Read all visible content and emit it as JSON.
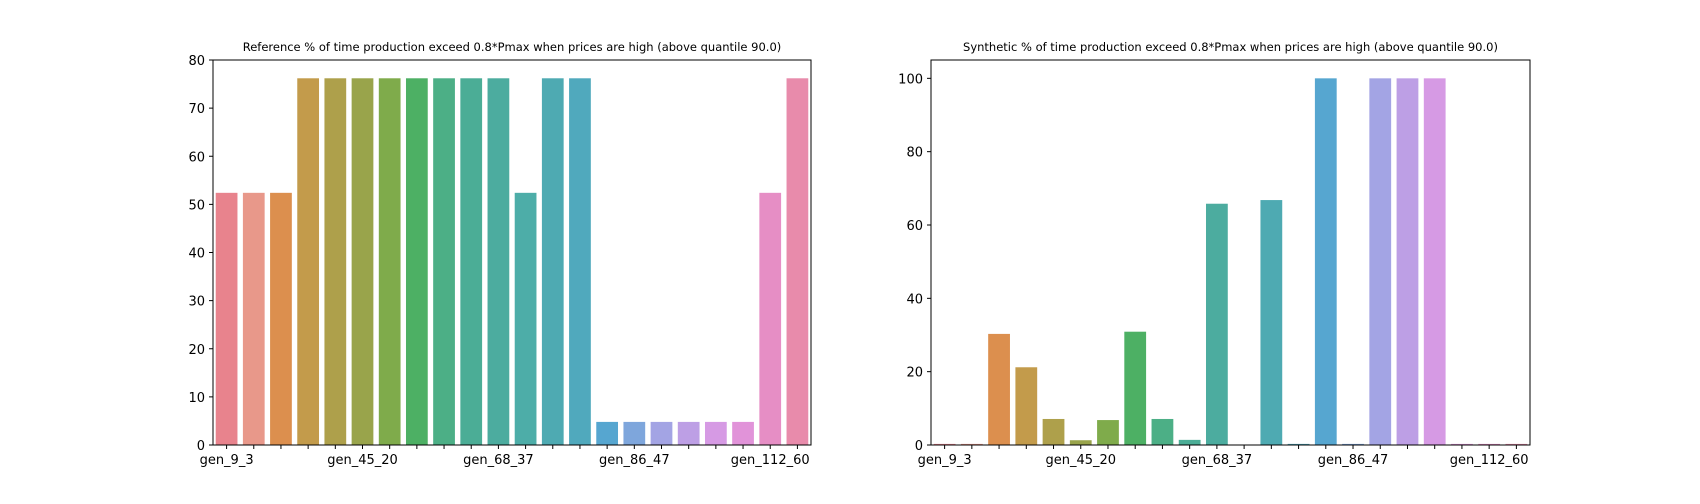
{
  "chart_data": [
    {
      "type": "bar",
      "title": "Reference % of time production exceed 0.8*Pmax when prices are high (above quantile 90.0)",
      "categories": [
        "gen_9_3",
        null,
        null,
        null,
        null,
        "gen_45_20",
        null,
        null,
        null,
        null,
        "gen_68_37",
        null,
        null,
        null,
        null,
        "gen_86_47",
        null,
        null,
        null,
        null,
        "gen_112_60",
        null
      ],
      "values": [
        52.4,
        52.4,
        52.4,
        76.2,
        76.2,
        76.2,
        76.2,
        76.2,
        76.2,
        76.2,
        76.2,
        52.4,
        76.2,
        76.2,
        4.8,
        4.8,
        4.8,
        4.8,
        4.8,
        4.8,
        52.4,
        76.2
      ],
      "colors": [
        "#e8838d",
        "#e8988a",
        "#dc8f4e",
        "#c39b4b",
        "#aea04b",
        "#99a44b",
        "#7fab4b",
        "#4db064",
        "#4caf86",
        "#4bad96",
        "#4cac9f",
        "#4dada8",
        "#4eaab2",
        "#50a9bd",
        "#56a6d0",
        "#7ea6dc",
        "#a3a4e4",
        "#bd9fe5",
        "#d69ae4",
        "#e193d9",
        "#e68ec5",
        "#e88bab"
      ],
      "ylim": [
        0,
        80
      ],
      "yticks": [
        0,
        10,
        20,
        30,
        40,
        50,
        60,
        70,
        80
      ]
    },
    {
      "type": "bar",
      "title": "Synthetic % of time production exceed 0.8*Pmax when prices are high (above quantile 90.0)",
      "categories": [
        "gen_9_3",
        null,
        null,
        null,
        null,
        "gen_45_20",
        null,
        null,
        null,
        null,
        "gen_68_37",
        null,
        null,
        null,
        null,
        "gen_86_47",
        null,
        null,
        null,
        null,
        "gen_112_60",
        null
      ],
      "values": [
        0.3,
        0.3,
        30.3,
        21.2,
        7.1,
        1.3,
        6.8,
        30.9,
        7.1,
        1.4,
        65.8,
        0,
        66.8,
        0.3,
        100,
        0.3,
        100,
        100,
        100,
        0.3,
        0.3,
        0.3
      ],
      "colors": [
        "#e8838d",
        "#e8988a",
        "#dc8f4e",
        "#c39b4b",
        "#aea04b",
        "#99a44b",
        "#7fab4b",
        "#4db064",
        "#4caf86",
        "#4bad96",
        "#4cac9f",
        "#4dada8",
        "#4eaab2",
        "#50a9bd",
        "#56a6d0",
        "#7ea6dc",
        "#a3a4e4",
        "#bd9fe5",
        "#d69ae4",
        "#e193d9",
        "#e68ec5",
        "#e88bab"
      ],
      "ylim": [
        0,
        105
      ],
      "yticks": [
        0,
        20,
        40,
        60,
        80,
        100
      ]
    }
  ]
}
